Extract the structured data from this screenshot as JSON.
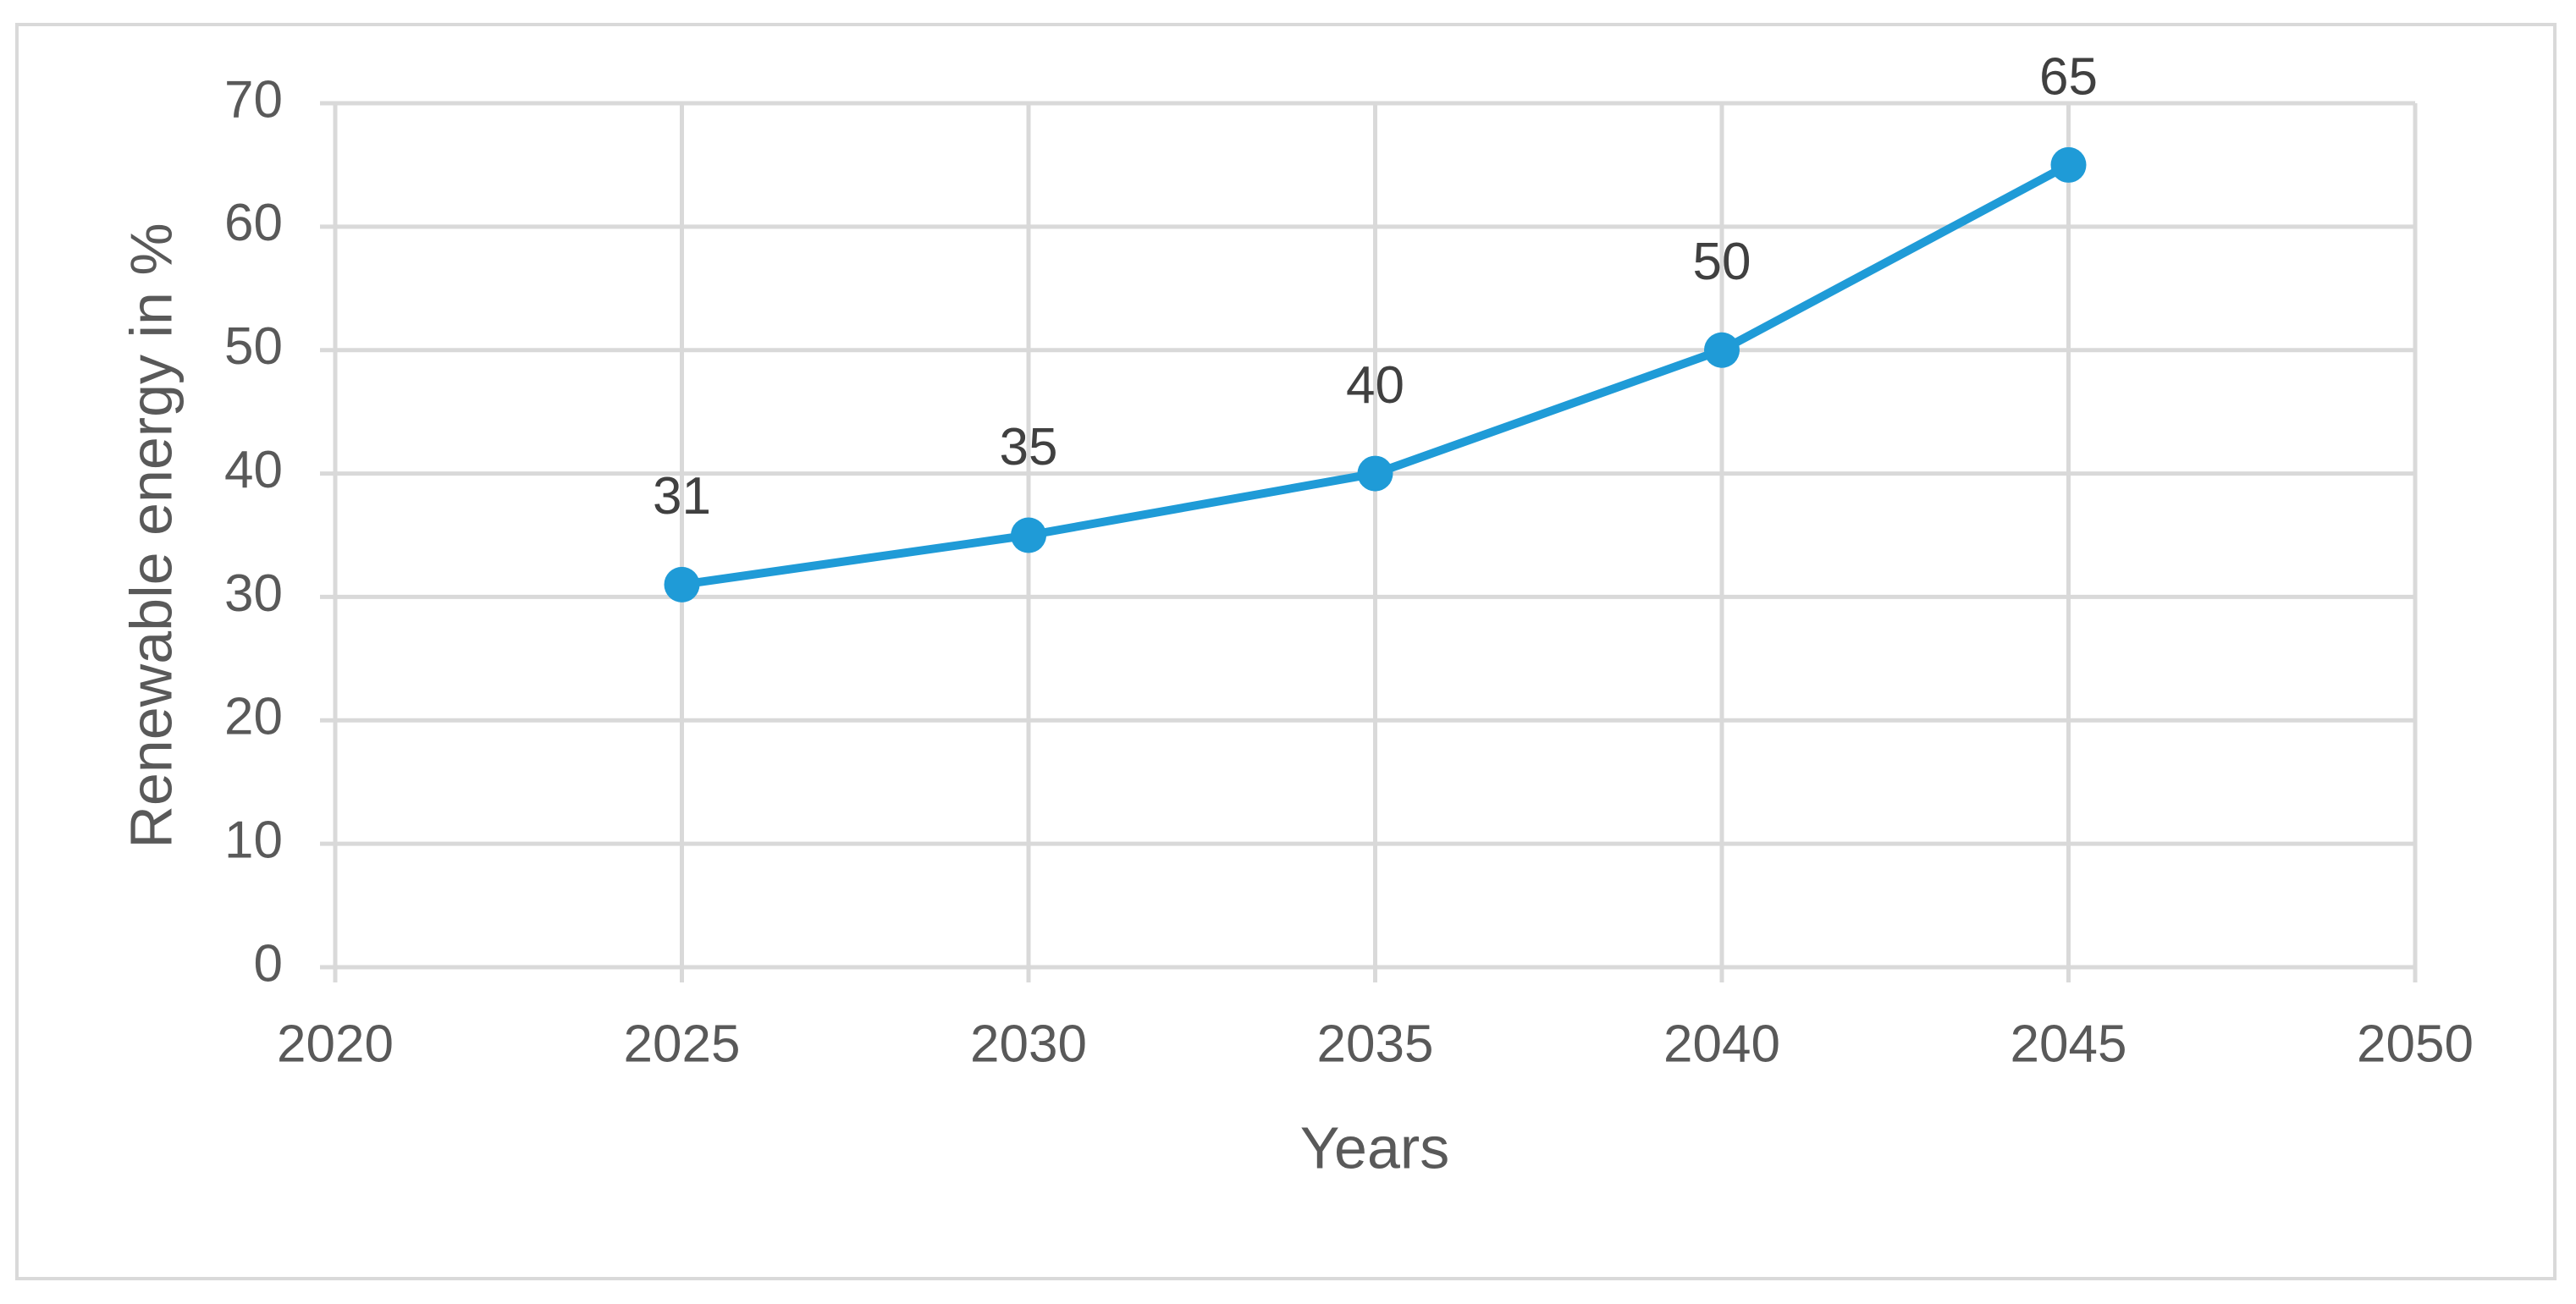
{
  "chart_data": {
    "type": "line",
    "x_label": "Years",
    "y_label": "Renewable energy in %",
    "series": [
      {
        "color": "#1f9bd7",
        "x": [
          2025,
          2030,
          2035,
          2040,
          2045
        ],
        "values": [
          31,
          35,
          40,
          50,
          65
        ]
      }
    ],
    "xlim": [
      2020,
      2050
    ],
    "xticks": [
      2020,
      2025,
      2030,
      2035,
      2040,
      2045,
      2050
    ],
    "ylim": [
      0,
      70
    ],
    "yticks": [
      0,
      10,
      20,
      30,
      40,
      50,
      60,
      70
    ],
    "grid": true,
    "data_labels": true
  }
}
